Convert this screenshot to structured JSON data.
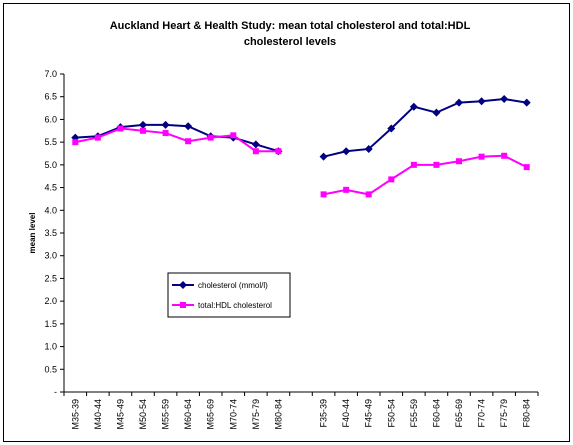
{
  "chart_data": {
    "type": "line",
    "title": "Auckland Heart & Health Study: mean total cholesterol and total:HDL cholesterol levels",
    "y_label": "mean level",
    "categories": [
      "M35-39",
      "M40-44",
      "M45-49",
      "M50-54",
      "M55-59",
      "M60-64",
      "M65-69",
      "M70-74",
      "M75-79",
      "M80-84",
      null,
      "F35-39",
      "F40-44",
      "F45-49",
      "F50-54",
      "F55-59",
      "F60-64",
      "F65-69",
      "F70-74",
      "F75-79",
      "F80-84"
    ],
    "series": [
      {
        "name": "cholesterol (mmol/l)",
        "color": "#000080",
        "marker": "diamond",
        "values": [
          5.6,
          5.63,
          5.83,
          5.88,
          5.88,
          5.85,
          5.63,
          5.6,
          5.45,
          5.3,
          null,
          5.18,
          5.3,
          5.35,
          5.8,
          6.28,
          6.15,
          6.37,
          6.4,
          6.45,
          6.37
        ]
      },
      {
        "name": "total:HDL cholesterol",
        "color": "#ff00ff",
        "marker": "square",
        "values": [
          5.5,
          5.6,
          5.8,
          5.75,
          5.7,
          5.52,
          5.6,
          5.65,
          5.3,
          5.3,
          null,
          4.35,
          4.45,
          4.35,
          4.68,
          5.0,
          5.0,
          5.08,
          5.18,
          5.2,
          4.95
        ]
      }
    ],
    "ylim": [
      0,
      7
    ],
    "yticks": [
      {
        "value": 0,
        "label": "-"
      },
      0.5,
      {
        "value": 1,
        "label": "1.0"
      },
      1.5,
      {
        "value": 2,
        "label": "2.0"
      },
      2.5,
      {
        "value": 3,
        "label": "3.0"
      },
      3.5,
      {
        "value": 4,
        "label": "4.0"
      },
      4.5,
      {
        "value": 5,
        "label": "5.0"
      },
      5.5,
      {
        "value": 6,
        "label": "6.0"
      },
      6.5,
      {
        "value": 7,
        "label": "7.0"
      }
    ],
    "grid": false
  }
}
